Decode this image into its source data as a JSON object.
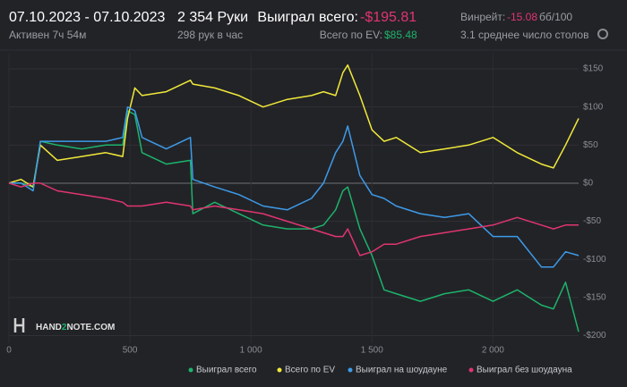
{
  "header": {
    "date_range": "07.10.2023 - 07.10.2023",
    "active": "Активен 7ч 54м",
    "hands": "2 354 Руки",
    "hands_per_hour": "298 рук в час",
    "won_label": "Выиграл всего:",
    "won_value": "-$195.81",
    "ev_label": "Всего по EV:",
    "ev_value": "$85.48",
    "winrate_label": "Винрейт:",
    "winrate_value": "-15.08",
    "winrate_unit": "бб/100",
    "tables": "3.1 среднее число столов"
  },
  "logo": {
    "part1": "HAND",
    "part2": "2",
    "part3": "NOTE.COM"
  },
  "chart_data": {
    "type": "line",
    "x": [
      0,
      50,
      100,
      130,
      200,
      300,
      400,
      470,
      490,
      520,
      550,
      650,
      750,
      760,
      850,
      950,
      1050,
      1150,
      1250,
      1300,
      1350,
      1380,
      1400,
      1450,
      1500,
      1550,
      1600,
      1700,
      1800,
      1900,
      2000,
      2100,
      2200,
      2250,
      2300,
      2354
    ],
    "series": [
      {
        "name": "Выиграл всего",
        "color": "#1db36b",
        "values": [
          0,
          0,
          -5,
          55,
          50,
          45,
          50,
          50,
          95,
          90,
          40,
          25,
          30,
          -40,
          -25,
          -40,
          -55,
          -60,
          -60,
          -55,
          -35,
          -10,
          -5,
          -60,
          -95,
          -140,
          -145,
          -155,
          -145,
          -140,
          -155,
          -140,
          -160,
          -165,
          -130,
          -195
        ]
      },
      {
        "name": "Всего по EV",
        "color": "#f0e93a",
        "values": [
          0,
          5,
          -5,
          50,
          30,
          35,
          40,
          35,
          85,
          125,
          115,
          120,
          135,
          130,
          125,
          115,
          100,
          110,
          115,
          120,
          115,
          145,
          155,
          115,
          70,
          55,
          60,
          40,
          45,
          50,
          60,
          40,
          25,
          20,
          50,
          85
        ]
      },
      {
        "name": "Выиграл на шоудауне",
        "color": "#3d9be9",
        "values": [
          0,
          0,
          -10,
          55,
          55,
          55,
          55,
          60,
          100,
          95,
          60,
          45,
          60,
          5,
          -5,
          -15,
          -30,
          -35,
          -20,
          0,
          40,
          55,
          75,
          10,
          -15,
          -20,
          -30,
          -40,
          -45,
          -40,
          -70,
          -70,
          -110,
          -110,
          -90,
          -95
        ]
      },
      {
        "name": "Выиграл без шоудауна",
        "color": "#e0356f",
        "values": [
          0,
          -5,
          0,
          0,
          -10,
          -15,
          -20,
          -25,
          -30,
          -30,
          -30,
          -25,
          -30,
          -35,
          -30,
          -35,
          -40,
          -50,
          -60,
          -65,
          -70,
          -70,
          -60,
          -95,
          -90,
          -80,
          -80,
          -70,
          -65,
          -60,
          -55,
          -45,
          -55,
          -60,
          -55,
          -55
        ]
      }
    ],
    "xlim": [
      0,
      2354
    ],
    "xticks": [
      0,
      500,
      {
        "value": 1000,
        "label": "1 000"
      },
      {
        "value": 1500,
        "label": "1 500"
      },
      {
        "value": 2000,
        "label": "2 000"
      }
    ],
    "ylim": [
      -210,
      170
    ],
    "yticks": [
      {
        "value": 150,
        "label": "$150"
      },
      {
        "value": 100,
        "label": "$100"
      },
      {
        "value": 50,
        "label": "$50"
      },
      {
        "value": 0,
        "label": "$0"
      },
      {
        "value": -50,
        "label": "-$50"
      },
      {
        "value": -100,
        "label": "-$100"
      },
      {
        "value": -150,
        "label": "-$150"
      },
      {
        "value": -200,
        "label": "-$200"
      }
    ],
    "grid": true,
    "legend": "bottom"
  }
}
